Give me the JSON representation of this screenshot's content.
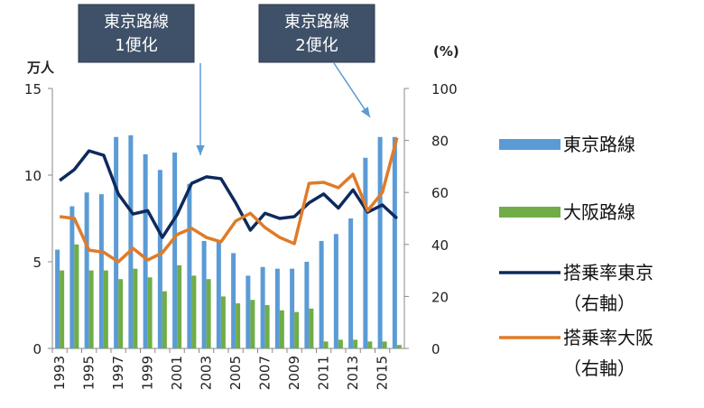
{
  "chart_data": {
    "type": "bar-line",
    "y_label": "万人",
    "y2_label": "(%)",
    "categories": [
      "1993",
      null,
      "1995",
      null,
      "1997",
      null,
      "1999",
      null,
      "2001",
      null,
      "2003",
      null,
      "2005",
      null,
      "2007",
      null,
      "2009",
      null,
      "2011",
      null,
      "2013",
      null,
      "2015",
      null
    ],
    "series": [
      {
        "name": "東京路線",
        "type": "bar",
        "color": "#5b9bd5",
        "values": [
          5.7,
          8.2,
          9.0,
          8.9,
          12.2,
          12.3,
          11.2,
          10.3,
          11.3,
          9.5,
          6.2,
          6.2,
          5.5,
          4.2,
          4.7,
          4.6,
          4.6,
          5.0,
          6.2,
          6.6,
          7.5,
          11.0,
          12.2,
          12.2
        ]
      },
      {
        "name": "大阪路線",
        "type": "bar",
        "color": "#70ad47",
        "values": [
          4.5,
          6.0,
          4.5,
          4.5,
          4.0,
          4.6,
          4.1,
          3.3,
          4.8,
          4.2,
          4.0,
          3.0,
          2.6,
          2.8,
          2.5,
          2.2,
          2.1,
          2.3,
          0.4,
          0.5,
          0.5,
          0.4,
          0.4,
          0.2
        ]
      },
      {
        "name": "搭乗率東京（右軸）",
        "type": "line",
        "axis": "y2",
        "color": "#0d2a5e",
        "values": [
          64.6,
          68.8,
          76,
          74.3,
          59.4,
          51.7,
          53,
          42.7,
          51.4,
          63.5,
          66,
          65.3,
          56,
          45.5,
          52,
          50,
          50.7,
          56,
          59.4,
          54,
          61,
          52.4,
          55.2,
          50
        ]
      },
      {
        "name": "搭乗率大阪（右軸）",
        "type": "line",
        "axis": "y2",
        "color": "#e07b28",
        "values": [
          50.7,
          50,
          37.8,
          37,
          33.3,
          38.5,
          34,
          36.8,
          43.8,
          46.2,
          42.7,
          41,
          49,
          52,
          46.5,
          42.7,
          40.3,
          63.5,
          63.9,
          61.8,
          67,
          53,
          60,
          81
        ]
      }
    ],
    "ylim": [
      0,
      15
    ],
    "yticks": [
      0,
      5,
      10,
      15
    ],
    "y2lim": [
      0,
      100
    ],
    "y2ticks": [
      0,
      20,
      40,
      60,
      80,
      100
    ],
    "annotations": [
      {
        "lines": [
          "東京路線",
          "1便化"
        ]
      },
      {
        "lines": [
          "東京路線",
          "2便化"
        ]
      }
    ]
  }
}
